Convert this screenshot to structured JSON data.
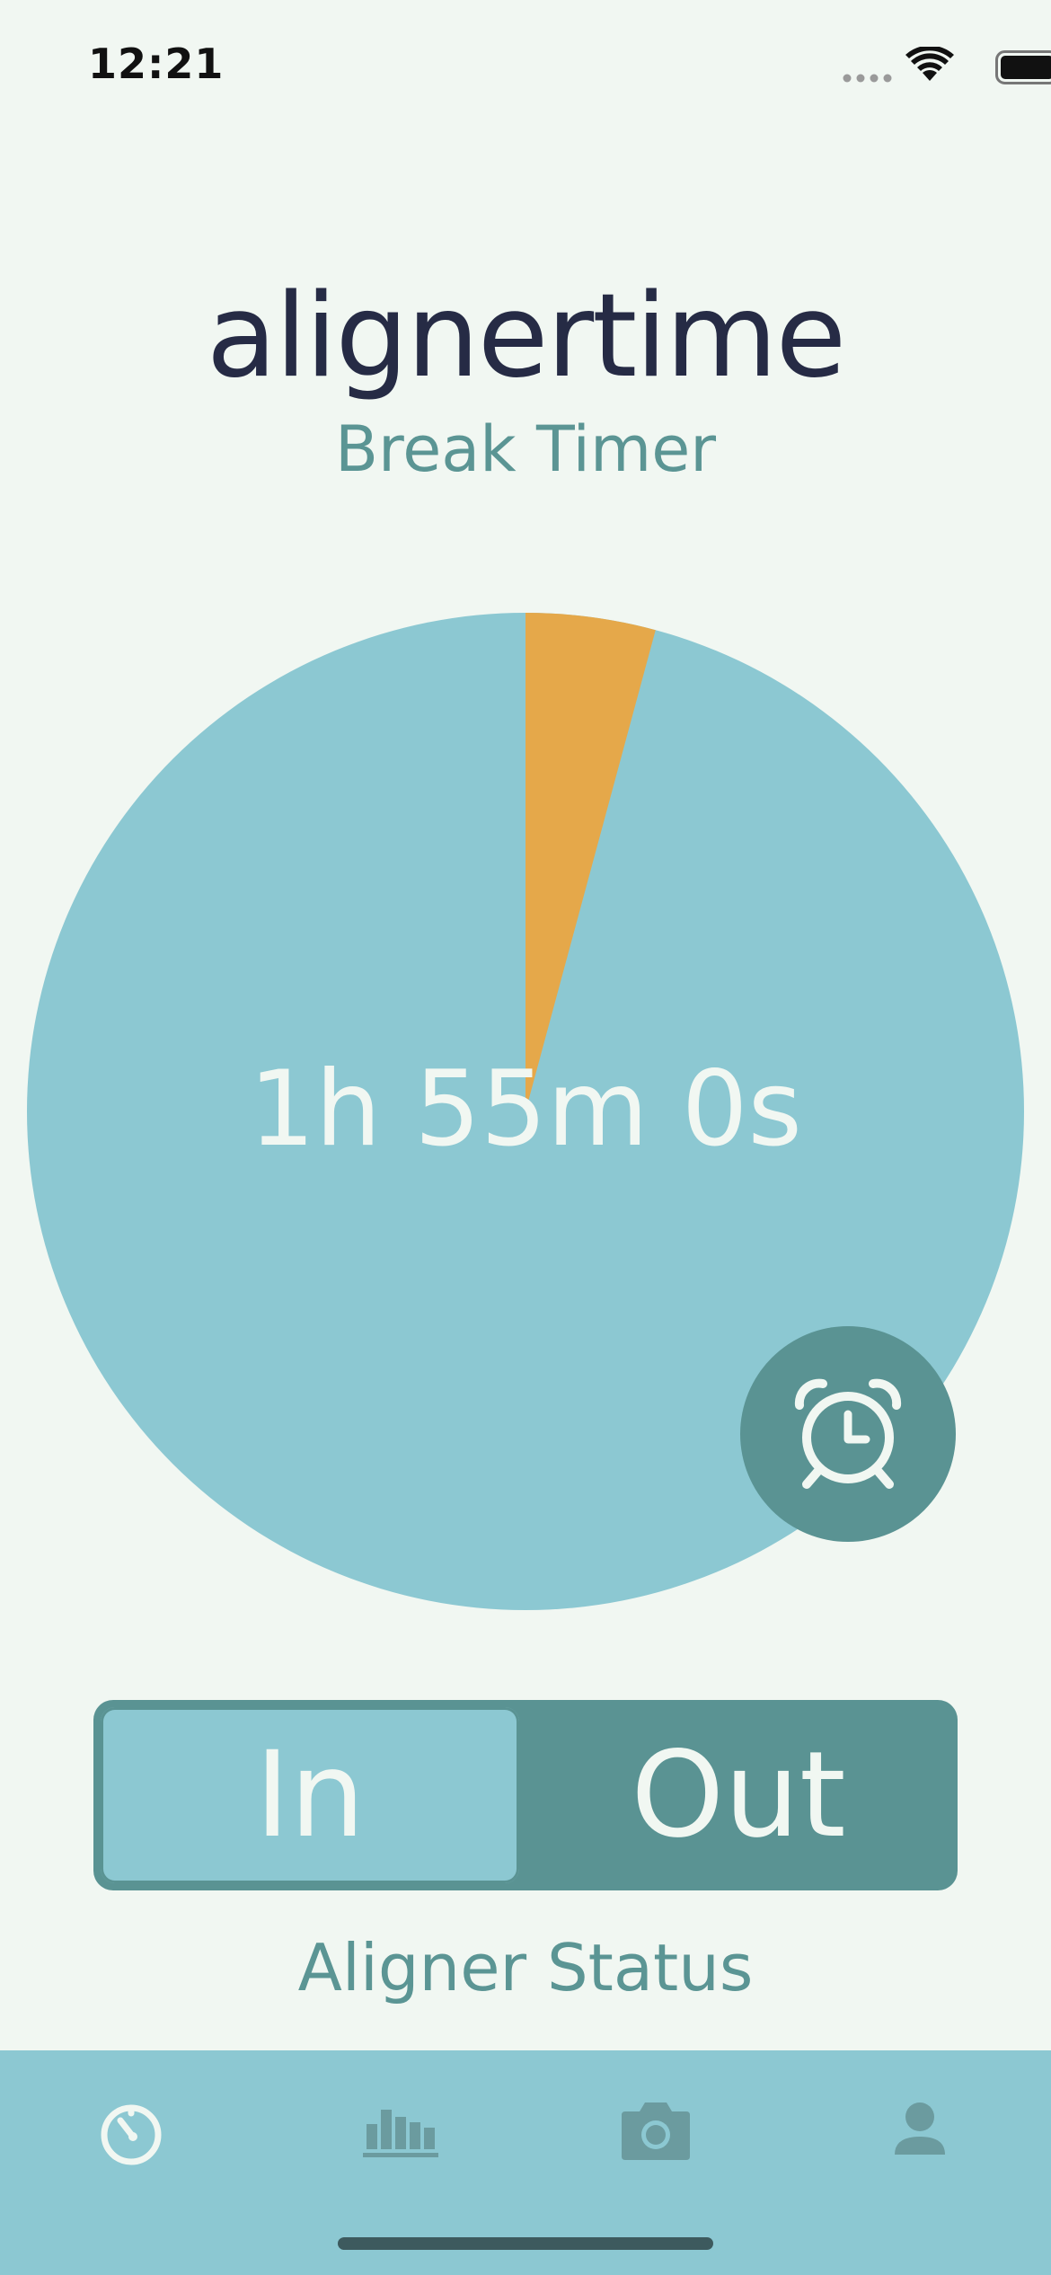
{
  "status_bar": {
    "time": "12:21",
    "icons": [
      "signal-icon",
      "wifi-icon",
      "battery-icon"
    ]
  },
  "header": {
    "app_name": "alignertime",
    "subtitle": "Break Timer"
  },
  "timer": {
    "display": "1h 55m 0s",
    "elapsed_fraction": 0.042,
    "colors": {
      "remaining": "#8cc8d2",
      "elapsed": "#e5a84a"
    },
    "alarm_icon": "alarm-clock-icon"
  },
  "aligner_toggle": {
    "in_label": "In",
    "out_label": "Out",
    "selected": "In",
    "caption": "Aligner Status"
  },
  "tab_bar": {
    "items": [
      {
        "icon": "timer-icon",
        "active": true
      },
      {
        "icon": "stats-chart-icon",
        "active": false
      },
      {
        "icon": "camera-icon",
        "active": false
      },
      {
        "icon": "profile-icon",
        "active": false
      }
    ]
  },
  "colors": {
    "background": "#f1f7f2",
    "accent": "#5a9393",
    "light_teal": "#8cc8d2",
    "title": "#262b45"
  }
}
